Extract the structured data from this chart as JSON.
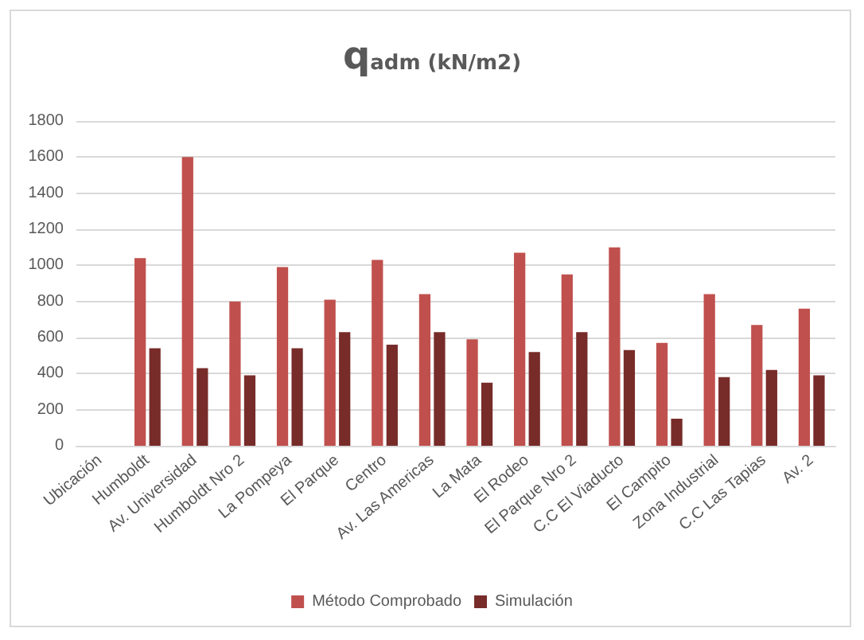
{
  "chart_data": {
    "type": "bar",
    "title": "q$_{adm}$ (kN/m2)",
    "categories": [
      "Ubicación",
      "Humboldt",
      "Av. Universidad",
      "Humboldt Nro 2",
      "La Pompeya",
      "El Parque",
      "Centro",
      "Av. Las Americas",
      "La Mata",
      "El Rodeo",
      "El Parque Nro 2",
      "C.C El Viaducto",
      "El Campito",
      "Zona Industrial",
      "C.C Las Tapias",
      "Av. 2"
    ],
    "series": [
      {
        "name": "Método Comprobado",
        "color": "#c0504d",
        "values": [
          null,
          1040,
          1600,
          800,
          990,
          810,
          1030,
          840,
          590,
          1070,
          950,
          1100,
          570,
          840,
          670,
          760
        ]
      },
      {
        "name": "Simulación",
        "color": "#772c2a",
        "values": [
          null,
          540,
          430,
          390,
          540,
          630,
          560,
          630,
          350,
          520,
          630,
          530,
          150,
          380,
          420,
          390
        ]
      }
    ],
    "ylim": [
      0,
      1800
    ],
    "yticks": [
      0,
      200,
      400,
      600,
      800,
      1000,
      1200,
      1400,
      1600,
      1800
    ],
    "grid": "y",
    "legend": "bottom"
  }
}
